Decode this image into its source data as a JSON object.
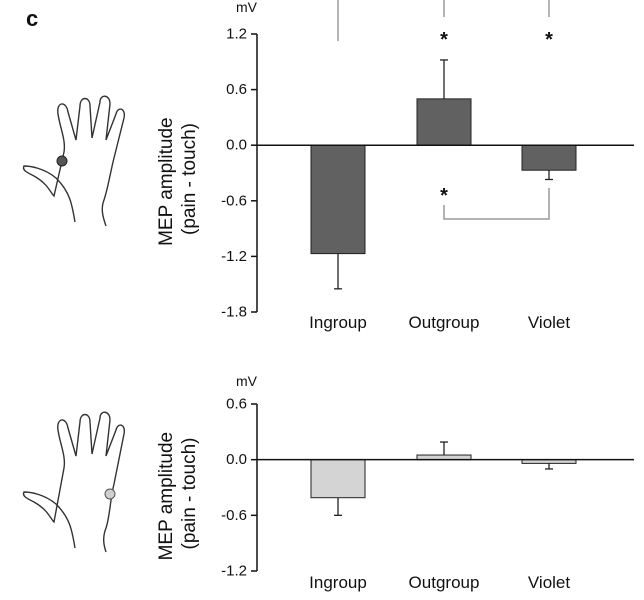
{
  "panel_label": "c",
  "chart_data": [
    {
      "type": "bar",
      "unit_label": "mV",
      "ylabel": "MEP amplitude\n(pain - touch)",
      "ylabel_lines": [
        "MEP amplitude",
        "(pain - touch)"
      ],
      "categories": [
        "Ingroup",
        "Outgroup",
        "Violet"
      ],
      "values": [
        -1.17,
        0.5,
        -0.27
      ],
      "errors": [
        0.38,
        0.42,
        0.1
      ],
      "ylim": [
        -1.8,
        1.2
      ],
      "yticks": [
        -1.8,
        -1.2,
        -0.6,
        0.0,
        0.6,
        1.2
      ],
      "ytick_labels": [
        "-1.8",
        "-1.2",
        "-0.6",
        "0.0",
        "0.6",
        "1.2"
      ],
      "bar_color": "#616161",
      "grid": false,
      "annotations": {
        "significance_markers": [
          {
            "category": "Outgroup",
            "label": "*"
          },
          {
            "category": "Violet",
            "label": "*"
          }
        ],
        "lower_bracket": {
          "from": "Outgroup",
          "to": "Violet",
          "label": "*"
        }
      },
      "icon": "hand-dark-dot-icon"
    },
    {
      "type": "bar",
      "unit_label": "mV",
      "ylabel": "MEP amplitude\n(pain - touch)",
      "ylabel_lines": [
        "MEP amplitude",
        "(pain - touch)"
      ],
      "categories": [
        "Ingroup",
        "Outgroup",
        "Violet"
      ],
      "values": [
        -0.41,
        0.05,
        -0.04
      ],
      "errors": [
        0.19,
        0.14,
        0.06
      ],
      "ylim": [
        -1.2,
        0.6
      ],
      "yticks": [
        -1.2,
        -0.6,
        0.0,
        0.6
      ],
      "ytick_labels": [
        "-1.2",
        "-0.6",
        "0.0",
        "0.6"
      ],
      "bar_color": "#d4d4d4",
      "grid": false,
      "icon": "hand-light-dot-icon"
    }
  ]
}
